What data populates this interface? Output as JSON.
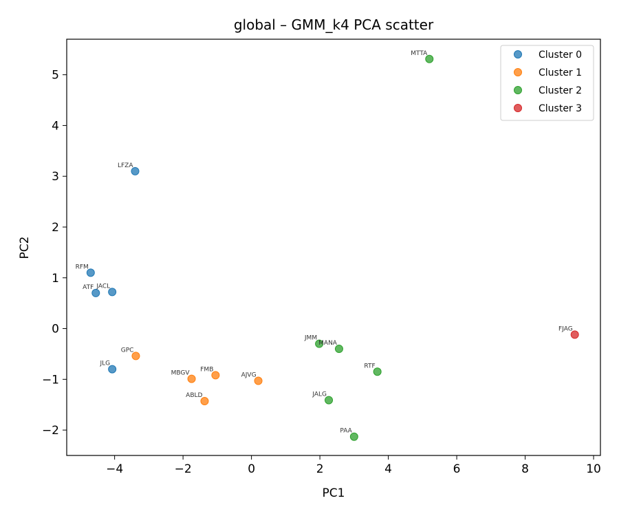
{
  "chart_data": {
    "type": "scatter",
    "title": "global – GMM_k4 PCA scatter",
    "xlabel": "PC1",
    "ylabel": "PC2",
    "xlim": [
      -5.4,
      10.2
    ],
    "ylim": [
      -2.5,
      5.7
    ],
    "xticks": [
      -4,
      -2,
      0,
      2,
      4,
      6,
      8,
      10
    ],
    "yticks": [
      -2,
      -1,
      0,
      1,
      2,
      3,
      4,
      5
    ],
    "grid": false,
    "legend_position": "top-right",
    "series": [
      {
        "name": "Cluster 0",
        "color": "#1f77b4",
        "points": [
          {
            "label": "LFZA",
            "x": -3.4,
            "y": 3.1
          },
          {
            "label": "RFM",
            "x": -4.7,
            "y": 1.1
          },
          {
            "label": "ATF",
            "x": -4.55,
            "y": 0.7
          },
          {
            "label": "JACL",
            "x": -4.07,
            "y": 0.72
          },
          {
            "label": "JLG",
            "x": -4.07,
            "y": -0.8
          }
        ]
      },
      {
        "name": "Cluster 1",
        "color": "#ff7f0e",
        "points": [
          {
            "label": "GPC",
            "x": -3.38,
            "y": -0.54
          },
          {
            "label": "MBGV",
            "x": -1.75,
            "y": -0.99
          },
          {
            "label": "FMB",
            "x": -1.05,
            "y": -0.92
          },
          {
            "label": "AJVG",
            "x": 0.2,
            "y": -1.03
          },
          {
            "label": "ABLD",
            "x": -1.37,
            "y": -1.43
          }
        ]
      },
      {
        "name": "Cluster 2",
        "color": "#2ca02c",
        "points": [
          {
            "label": "MTTA",
            "x": 5.2,
            "y": 5.31
          },
          {
            "label": "JMM",
            "x": 1.98,
            "y": -0.3
          },
          {
            "label": "MANA",
            "x": 2.56,
            "y": -0.4
          },
          {
            "label": "RTF",
            "x": 3.68,
            "y": -0.85
          },
          {
            "label": "JALG",
            "x": 2.26,
            "y": -1.41
          },
          {
            "label": "PAA",
            "x": 3.0,
            "y": -2.13
          }
        ]
      },
      {
        "name": "Cluster 3",
        "color": "#d62728",
        "points": [
          {
            "label": "FJAG",
            "x": 9.45,
            "y": -0.12
          }
        ]
      }
    ]
  }
}
